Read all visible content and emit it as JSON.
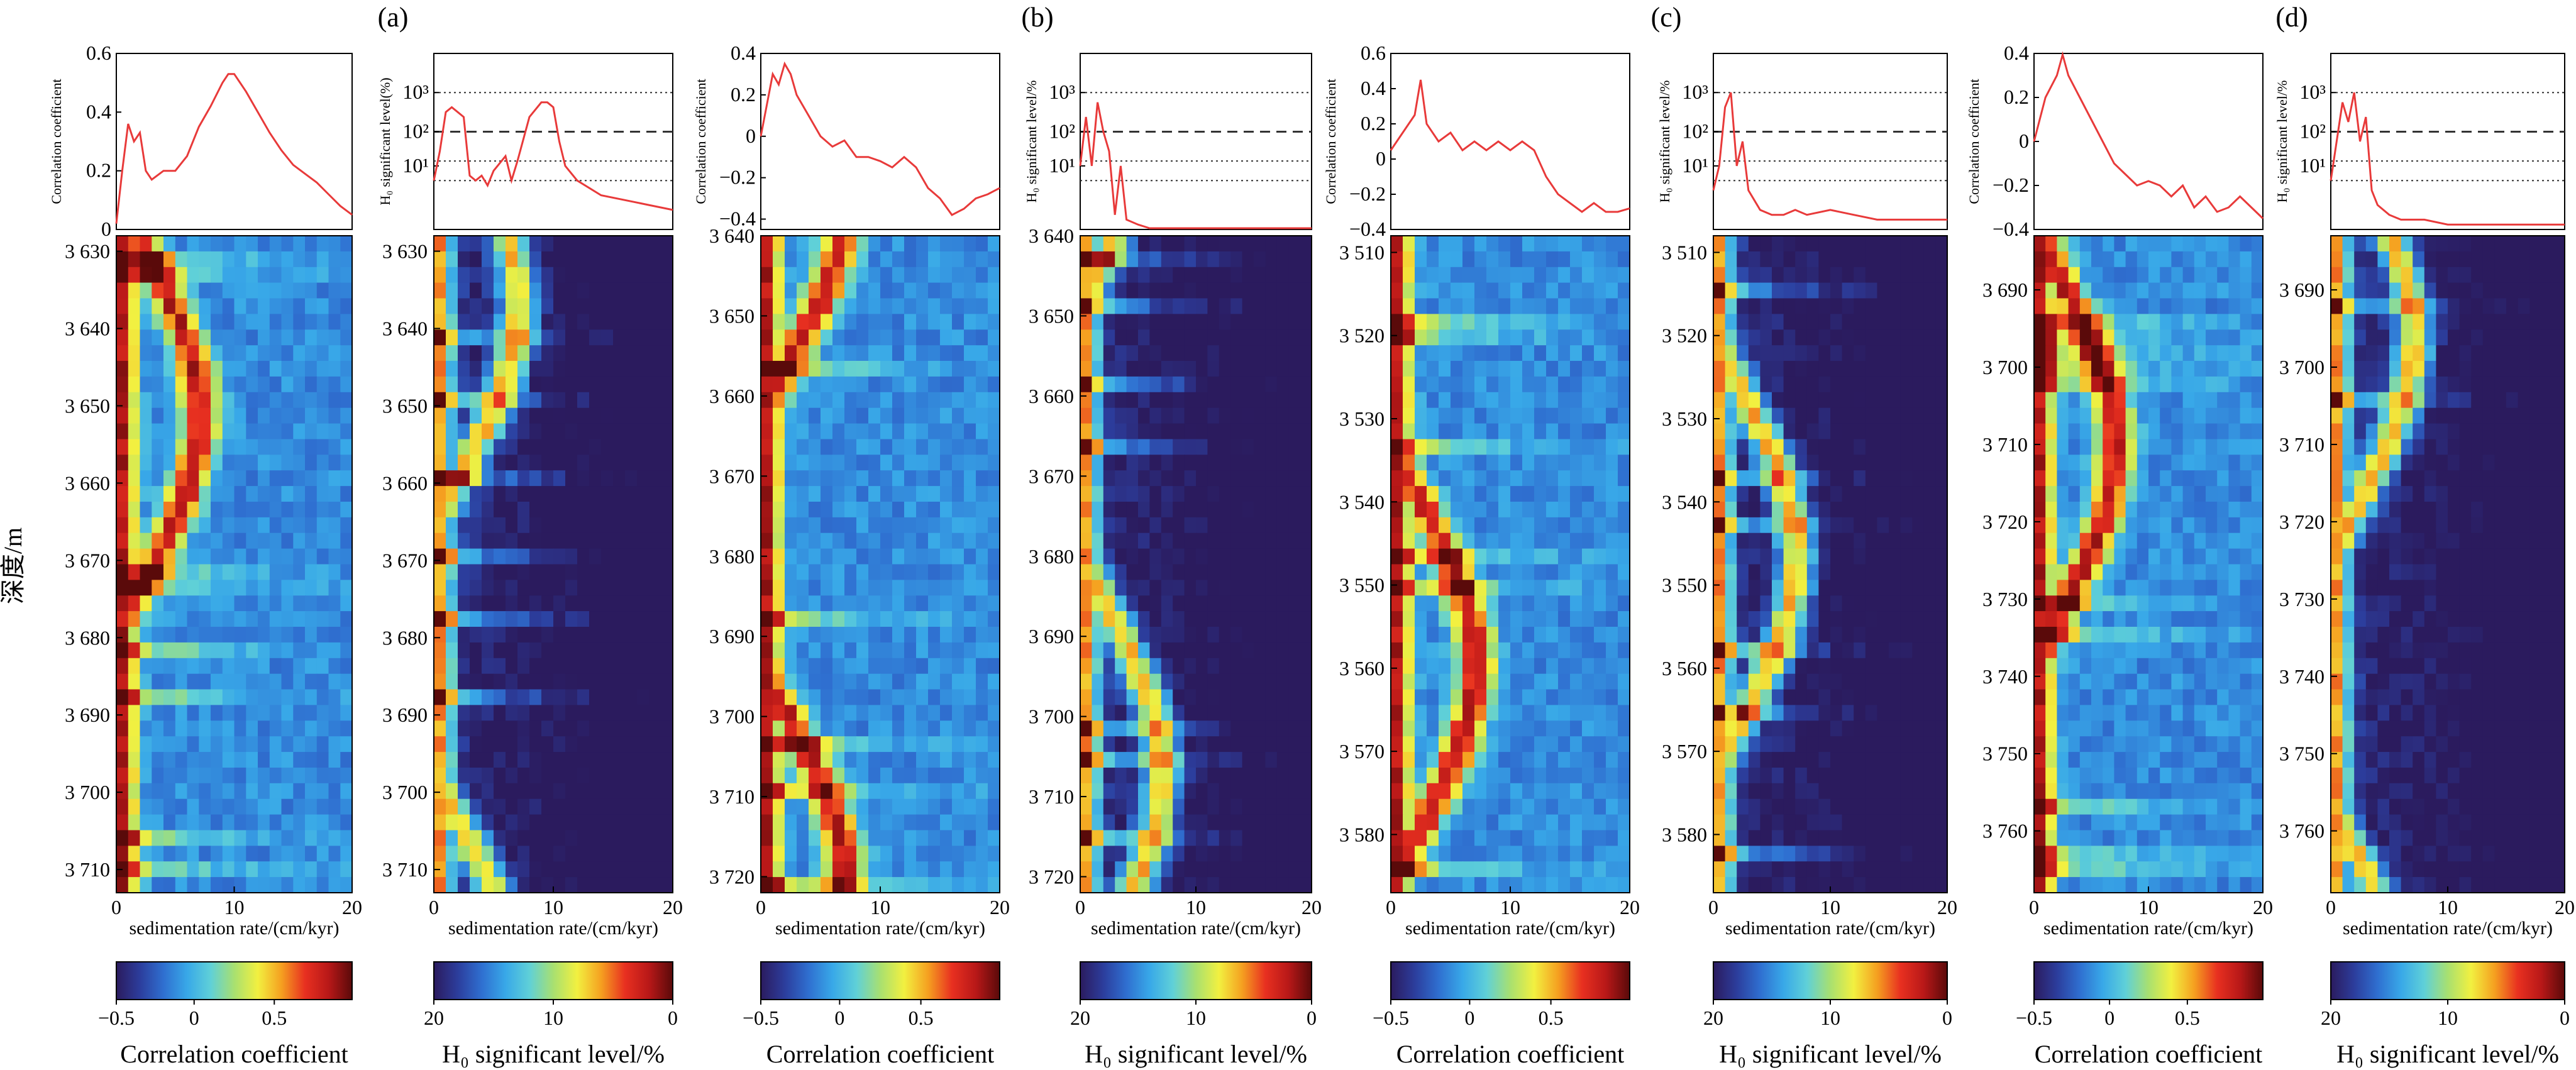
{
  "panel_letters": [
    "(a)",
    "(b)",
    "(c)",
    "(d)"
  ],
  "y_axis_label": "深度/m",
  "labels": {
    "corr_ylabel": "Correlation coefficient",
    "h0_ylabel_a": "H₀ significant level(%)",
    "h0_ylabel": "H₀ significant level/%",
    "xlabel": "sedimentation rate/(cm/kyr)",
    "cb_corr": "Correlation coefficient",
    "cb_h0": "H₀ significant level/%"
  },
  "colorbars": {
    "corr_ticks": [
      "−0.5",
      "0",
      "0.5"
    ],
    "h0_ticks": [
      "20",
      "10",
      "0"
    ],
    "colormap": [
      "#2b1b5e",
      "#2c3d9c",
      "#2f6fd0",
      "#38a8e8",
      "#5fd0d8",
      "#a8e070",
      "#f2f040",
      "#f5a020",
      "#e83020",
      "#b81818",
      "#5a0a0a"
    ]
  },
  "h0_levels": {
    "ticks": [
      "10³",
      "10²",
      "10¹"
    ]
  },
  "chart_data": [
    {
      "panel": "a",
      "type": "line+heatmap",
      "kind": "correlation",
      "line": {
        "xlim": [
          0,
          20
        ],
        "ylim": [
          0,
          0.6
        ],
        "yticks": [
          "0",
          "0.2",
          "0.4",
          "0.6"
        ],
        "x": [
          0,
          0.5,
          1,
          1.5,
          2,
          2.5,
          3,
          4,
          5,
          6,
          7,
          8,
          9,
          9.5,
          10,
          11,
          12,
          13,
          14,
          15,
          16,
          17,
          18,
          19,
          20
        ],
        "y": [
          0.02,
          0.2,
          0.36,
          0.3,
          0.33,
          0.2,
          0.17,
          0.2,
          0.2,
          0.25,
          0.35,
          0.42,
          0.5,
          0.53,
          0.53,
          0.47,
          0.4,
          0.33,
          0.27,
          0.22,
          0.19,
          0.16,
          0.12,
          0.08,
          0.05
        ]
      },
      "heatmap": {
        "xlim": [
          0,
          20
        ],
        "xticks": [
          "0",
          "10",
          "20"
        ],
        "depth_range": [
          3628,
          3713
        ],
        "depth_ticks": [
          "3 630",
          "3 640",
          "3 650",
          "3 660",
          "3 670",
          "3 680",
          "3 690",
          "3 700",
          "3 710"
        ]
      }
    },
    {
      "panel": "a",
      "type": "line+heatmap",
      "kind": "h0",
      "line": {
        "xlim": [
          0,
          20
        ],
        "yticks": [
          "10³",
          "10²",
          "10¹"
        ],
        "x": [
          0,
          0.5,
          1,
          1.5,
          2,
          2.5,
          3,
          3.5,
          4,
          4.5,
          5,
          6,
          6.5,
          7,
          8,
          9,
          9.5,
          10,
          10.5,
          11,
          12,
          14,
          16,
          18,
          20
        ],
        "y": [
          3.8,
          3.2,
          2.4,
          2.3,
          2.4,
          2.5,
          3.7,
          3.8,
          3.7,
          3.9,
          3.6,
          3.3,
          3.8,
          3.4,
          2.5,
          2.2,
          2.2,
          2.3,
          3.0,
          3.5,
          3.8,
          4.1,
          4.2,
          4.3,
          4.4
        ]
      },
      "heatmap": {
        "xlim": [
          0,
          20
        ],
        "xticks": [
          "0",
          "10",
          "20"
        ],
        "depth_range": [
          3628,
          3713
        ],
        "depth_ticks": [
          "3 630",
          "3 640",
          "3 650",
          "3 660",
          "3 670",
          "3 680",
          "3 690",
          "3 700",
          "3 710"
        ]
      }
    },
    {
      "panel": "b",
      "type": "line+heatmap",
      "kind": "correlation",
      "line": {
        "xlim": [
          0,
          20
        ],
        "ylim": [
          -0.45,
          0.4
        ],
        "yticks": [
          "0.4",
          "0.2",
          "0",
          "−0.2",
          "−0.4"
        ],
        "x": [
          0,
          0.5,
          1,
          1.5,
          2,
          2.5,
          3,
          4,
          5,
          6,
          7,
          8,
          9,
          10,
          11,
          12,
          13,
          14,
          15,
          16,
          17,
          18,
          19,
          20
        ],
        "y": [
          0.0,
          0.15,
          0.3,
          0.25,
          0.35,
          0.3,
          0.2,
          0.1,
          0.0,
          -0.05,
          -0.02,
          -0.1,
          -0.1,
          -0.12,
          -0.15,
          -0.1,
          -0.15,
          -0.25,
          -0.3,
          -0.38,
          -0.35,
          -0.3,
          -0.28,
          -0.25
        ]
      },
      "heatmap": {
        "xlim": [
          0,
          20
        ],
        "xticks": [
          "0",
          "10",
          "20"
        ],
        "depth_range": [
          3640,
          3722
        ],
        "depth_ticks": [
          "3 640",
          "3 650",
          "3 660",
          "3 670",
          "3 680",
          "3 690",
          "3 700",
          "3 710",
          "3 720"
        ]
      }
    },
    {
      "panel": "b",
      "type": "line+heatmap",
      "kind": "h0",
      "line": {
        "xlim": [
          0,
          20
        ],
        "yticks": [
          "10³",
          "10²",
          "10¹"
        ],
        "x": [
          0,
          0.5,
          1,
          1.5,
          2,
          2.5,
          3,
          3.5,
          4,
          5,
          6,
          8,
          10,
          12,
          14,
          16,
          18,
          20
        ],
        "y": [
          3.5,
          2.5,
          3.5,
          2.2,
          2.8,
          3.2,
          4.5,
          3.5,
          4.6,
          4.7,
          4.8,
          4.8,
          4.8,
          4.8,
          4.8,
          4.8,
          4.8,
          4.8
        ]
      },
      "heatmap": {
        "xlim": [
          0,
          20
        ],
        "xticks": [
          "0",
          "10",
          "20"
        ],
        "depth_range": [
          3640,
          3722
        ],
        "depth_ticks": [
          "3 640",
          "3 650",
          "3 660",
          "3 670",
          "3 680",
          "3 690",
          "3 700",
          "3 710",
          "3 720"
        ]
      }
    },
    {
      "panel": "c",
      "type": "line+heatmap",
      "kind": "correlation",
      "line": {
        "xlim": [
          0,
          20
        ],
        "ylim": [
          -0.4,
          0.6
        ],
        "yticks": [
          "0.6",
          "0.4",
          "0.2",
          "0",
          "−0.2",
          "−0.4"
        ],
        "x": [
          0,
          1,
          2,
          2.5,
          3,
          4,
          5,
          6,
          7,
          8,
          9,
          10,
          11,
          12,
          13,
          14,
          15,
          16,
          17,
          18,
          19,
          20
        ],
        "y": [
          0.05,
          0.15,
          0.25,
          0.45,
          0.2,
          0.1,
          0.15,
          0.05,
          0.1,
          0.05,
          0.1,
          0.05,
          0.1,
          0.05,
          -0.1,
          -0.2,
          -0.25,
          -0.3,
          -0.25,
          -0.3,
          -0.3,
          -0.28
        ]
      },
      "heatmap": {
        "xlim": [
          0,
          20
        ],
        "xticks": [
          "0",
          "10",
          "20"
        ],
        "depth_range": [
          3508,
          3587
        ],
        "depth_ticks": [
          "3 510",
          "3 520",
          "3 530",
          "3 540",
          "3 550",
          "3 560",
          "3 570",
          "3 580"
        ]
      }
    },
    {
      "panel": "c",
      "type": "line+heatmap",
      "kind": "h0",
      "line": {
        "xlim": [
          0,
          20
        ],
        "yticks": [
          "10³",
          "10²",
          "10¹"
        ],
        "x": [
          0,
          0.5,
          1,
          1.5,
          2,
          2.5,
          3,
          3.5,
          4,
          5,
          6,
          7,
          8,
          10,
          12,
          14,
          16,
          18,
          20
        ],
        "y": [
          4.0,
          3.5,
          2.3,
          2.0,
          3.5,
          3.0,
          4.0,
          4.2,
          4.4,
          4.5,
          4.5,
          4.4,
          4.5,
          4.4,
          4.5,
          4.6,
          4.6,
          4.6,
          4.6
        ]
      },
      "heatmap": {
        "xlim": [
          0,
          20
        ],
        "xticks": [
          "0",
          "10",
          "20"
        ],
        "depth_range": [
          3508,
          3587
        ],
        "depth_ticks": [
          "3 510",
          "3 520",
          "3 530",
          "3 540",
          "3 550",
          "3 560",
          "3 570",
          "3 580"
        ]
      }
    },
    {
      "panel": "d",
      "type": "line+heatmap",
      "kind": "correlation",
      "line": {
        "xlim": [
          0,
          20
        ],
        "ylim": [
          -0.4,
          0.4
        ],
        "yticks": [
          "0.4",
          "0.2",
          "0",
          "−0.2",
          "−0.4"
        ],
        "x": [
          0,
          1,
          2,
          2.5,
          3,
          4,
          5,
          6,
          7,
          8,
          9,
          10,
          11,
          12,
          13,
          14,
          15,
          16,
          17,
          18,
          19,
          20
        ],
        "y": [
          0.0,
          0.2,
          0.3,
          0.4,
          0.3,
          0.2,
          0.1,
          0.0,
          -0.1,
          -0.15,
          -0.2,
          -0.18,
          -0.2,
          -0.25,
          -0.2,
          -0.3,
          -0.25,
          -0.32,
          -0.3,
          -0.25,
          -0.3,
          -0.35
        ]
      },
      "heatmap": {
        "xlim": [
          0,
          20
        ],
        "xticks": [
          "0",
          "10",
          "20"
        ],
        "depth_range": [
          3683,
          3768
        ],
        "depth_ticks": [
          "3 690",
          "3 700",
          "3 710",
          "3 720",
          "3 730",
          "3 740",
          "3 750",
          "3 760"
        ]
      }
    },
    {
      "panel": "d",
      "type": "line+heatmap",
      "kind": "h0",
      "line": {
        "xlim": [
          0,
          20
        ],
        "yticks": [
          "10³",
          "10²",
          "10¹"
        ],
        "x": [
          0,
          0.5,
          1,
          1.5,
          2,
          2.5,
          3,
          3.5,
          4,
          5,
          6,
          8,
          10,
          12,
          14,
          16,
          18,
          20
        ],
        "y": [
          3.8,
          3.0,
          2.2,
          2.6,
          2.0,
          3.0,
          2.5,
          4.0,
          4.3,
          4.5,
          4.6,
          4.6,
          4.7,
          4.7,
          4.7,
          4.7,
          4.7,
          4.7
        ]
      },
      "heatmap": {
        "xlim": [
          0,
          20
        ],
        "xticks": [
          "0",
          "10",
          "20"
        ],
        "depth_range": [
          3683,
          3768
        ],
        "depth_ticks": [
          "3 690",
          "3 700",
          "3 710",
          "3 720",
          "3 730",
          "3 740",
          "3 750",
          "3 760"
        ]
      }
    }
  ]
}
